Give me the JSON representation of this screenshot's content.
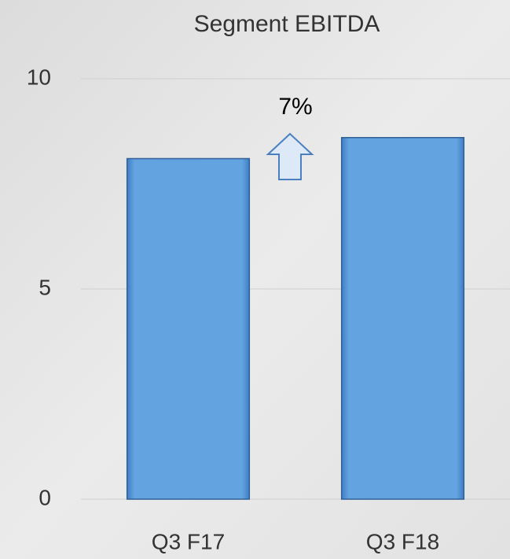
{
  "chart_data": {
    "type": "bar",
    "title": "Segment EBITDA",
    "categories": [
      "Q3 F17",
      "Q3 F18"
    ],
    "values": [
      8.1,
      8.6
    ],
    "color": "#5b9bd5",
    "ylim": [
      0,
      10
    ],
    "yticks": [
      0,
      5,
      10
    ],
    "grid": true,
    "annotations": [
      "7%"
    ]
  }
}
